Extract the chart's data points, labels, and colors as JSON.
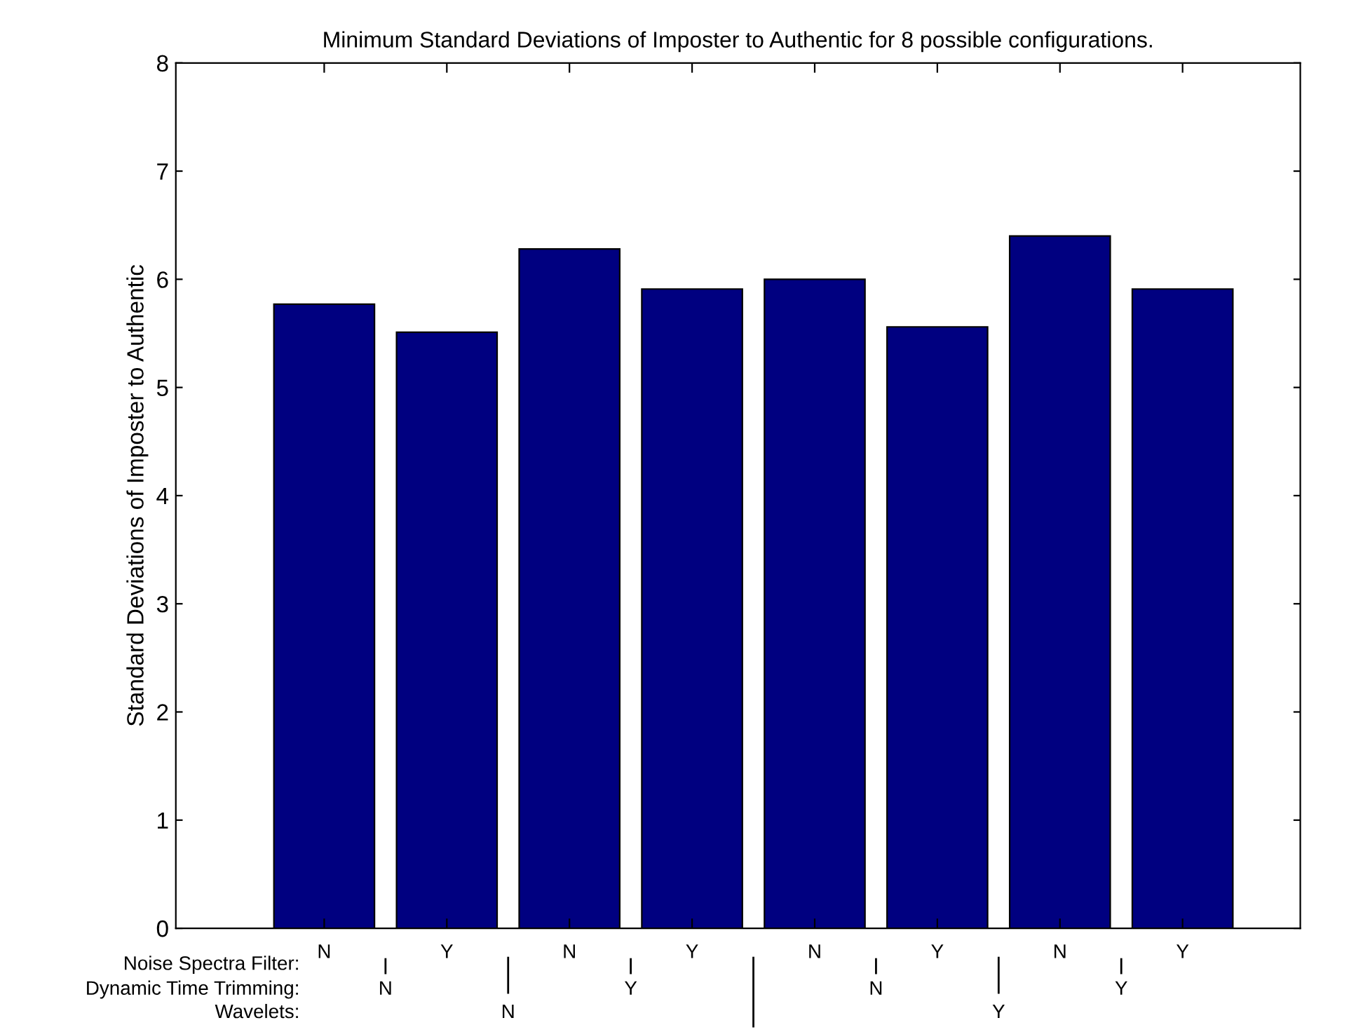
{
  "chart_data": {
    "type": "bar",
    "title": "Minimum Standard Deviations of Imposter to Authentic for 8 possible configurations.",
    "ylabel": "Standard Deviations of Imposter to Authentic",
    "categories": [
      "N",
      "Y",
      "N",
      "Y",
      "N",
      "Y",
      "N",
      "Y"
    ],
    "values": [
      5.77,
      5.51,
      6.28,
      5.91,
      6.0,
      5.56,
      6.4,
      5.91
    ],
    "color": "#000080",
    "ylim": [
      0,
      8
    ],
    "yticks": [
      0,
      1,
      2,
      3,
      4,
      5,
      6,
      7,
      8
    ],
    "annotations": [
      "Noise Spectra Filter:",
      "Dynamic Time Trimming:",
      "Wavelets:",
      "N",
      "Y",
      "N",
      "Y",
      "N",
      "Y"
    ]
  }
}
